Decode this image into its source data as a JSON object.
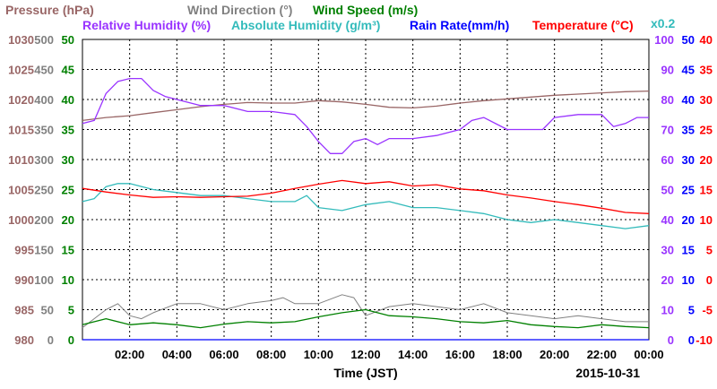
{
  "chart_data": {
    "type": "line",
    "date": "2015-10-31",
    "xlabel": "Time (JST)",
    "x_ticks": [
      "02:00",
      "04:00",
      "06:00",
      "08:00",
      "10:00",
      "12:00",
      "14:00",
      "16:00",
      "18:00",
      "20:00",
      "22:00",
      "00:00"
    ],
    "x_range_hours": [
      0,
      24
    ],
    "grid": true,
    "legend_placement": "top",
    "scale_note": "x0.2",
    "axes": [
      {
        "key": "pressure",
        "label": "Pressure (hPa)",
        "side": "left",
        "color": "#996666",
        "ylim": [
          980,
          1030
        ],
        "ticks": [
          "1030",
          "1025",
          "1020",
          "1015",
          "1010",
          "1005",
          "1000",
          "995",
          "990",
          "985",
          "980"
        ]
      },
      {
        "key": "direction",
        "label": "Wind Direction (°)",
        "side": "left",
        "color": "#808080",
        "ylim": [
          0,
          500
        ],
        "ticks": [
          "500",
          "450",
          "400",
          "350",
          "300",
          "250",
          "200",
          "150",
          "100",
          "50",
          "0"
        ]
      },
      {
        "key": "speed",
        "label": "Wind Speed (m/s)",
        "side": "left",
        "color": "#008000",
        "ylim": [
          0,
          50
        ],
        "ticks": [
          "50",
          "45",
          "40",
          "35",
          "30",
          "25",
          "20",
          "15",
          "10",
          "5",
          "0"
        ]
      },
      {
        "key": "rh",
        "label": "Relative Humidity (%)",
        "side": "right",
        "color": "#9933ff",
        "ylim": [
          0,
          100
        ],
        "ticks": [
          "100",
          "90",
          "80",
          "70",
          "60",
          "50",
          "40",
          "30",
          "20",
          "10",
          "0"
        ]
      },
      {
        "key": "rain",
        "label": "Rain Rate(mm/h)",
        "side": "right",
        "color": "#0000ff",
        "ylim": [
          0,
          50
        ],
        "ticks": [
          "50",
          "45",
          "40",
          "35",
          "30",
          "25",
          "20",
          "15",
          "10",
          "5",
          "0"
        ]
      },
      {
        "key": "temp",
        "label": "Temperature (°C)",
        "side": "right",
        "color": "#ff0000",
        "ylim": [
          -10,
          40
        ],
        "ticks": [
          "40",
          "35",
          "30",
          "25",
          "20",
          "15",
          "10",
          "5",
          "0",
          "-5",
          "-10"
        ]
      }
    ],
    "legend": [
      {
        "key": "pressure",
        "label": "Pressure (hPa)",
        "color": "#996666",
        "row": 1
      },
      {
        "key": "direction",
        "label": "Wind Direction (°)",
        "color": "#808080",
        "row": 1
      },
      {
        "key": "speed",
        "label": "Wind Speed (m/s)",
        "color": "#008000",
        "row": 1
      },
      {
        "key": "rh",
        "label": "Relative Humidity (%)",
        "color": "#9933ff",
        "row": 2
      },
      {
        "key": "abs",
        "label": "Absolute Humidity (g/m³)",
        "color": "#33bbbb",
        "row": 2
      },
      {
        "key": "rain",
        "label": "Rain Rate(mm/h)",
        "color": "#0000ff",
        "row": 2
      },
      {
        "key": "temp",
        "label": "Temperature (°C)",
        "color": "#ff0000",
        "row": 2
      }
    ],
    "series": [
      {
        "name": "Pressure (hPa)",
        "axis": "pressure",
        "color": "#996666",
        "x": [
          0,
          1,
          2,
          3,
          4,
          5,
          6,
          7,
          8,
          9,
          10,
          11,
          12,
          13,
          14,
          15,
          16,
          17,
          18,
          19,
          20,
          21,
          22,
          23,
          24
        ],
        "values": [
          1016.5,
          1017.0,
          1017.3,
          1017.8,
          1018.3,
          1018.8,
          1019.2,
          1019.5,
          1019.4,
          1019.4,
          1019.8,
          1019.6,
          1019.2,
          1018.7,
          1018.6,
          1018.9,
          1019.4,
          1019.8,
          1020.1,
          1020.4,
          1020.7,
          1020.9,
          1021.1,
          1021.3,
          1021.4
        ]
      },
      {
        "name": "Relative Humidity (%)",
        "axis": "rh",
        "color": "#9933ff",
        "x": [
          0,
          0.5,
          1,
          1.5,
          2,
          2.5,
          3,
          3.5,
          4,
          5,
          6,
          7,
          8,
          9,
          9.5,
          10,
          10.5,
          11,
          11.5,
          12,
          12.5,
          13,
          14,
          15,
          16,
          16.5,
          17,
          18,
          19,
          19.5,
          20,
          21,
          22,
          22.5,
          23,
          23.5,
          24
        ],
        "values": [
          72,
          73,
          82,
          86,
          87,
          87,
          83,
          81,
          80,
          78,
          78,
          76,
          76,
          75,
          71,
          66,
          62,
          62,
          66,
          67,
          65,
          67,
          67,
          68,
          70,
          73,
          74,
          70,
          70,
          70,
          74,
          75,
          75,
          71,
          72,
          74,
          74
        ]
      },
      {
        "name": "Absolute Humidity (g/m³)",
        "axis": "abs",
        "color": "#33bbbb",
        "scale": 0.2,
        "x": [
          0,
          0.5,
          1,
          1.5,
          2,
          3,
          4,
          5,
          6,
          7,
          8,
          9,
          9.5,
          10,
          11,
          12,
          13,
          14,
          15,
          16,
          17,
          18,
          19,
          20,
          21,
          22,
          23,
          24
        ],
        "values": [
          46,
          47,
          51,
          52,
          52,
          50,
          49,
          48,
          48,
          47,
          46,
          46,
          48,
          44,
          43,
          45,
          46,
          44,
          44,
          43,
          42,
          40,
          39,
          40,
          39,
          38,
          37,
          38
        ]
      },
      {
        "name": "Temperature (°C)",
        "axis": "temp",
        "color": "#ff0000",
        "x": [
          0,
          1,
          2,
          3,
          4,
          5,
          6,
          7,
          8,
          9,
          10,
          11,
          12,
          13,
          14,
          15,
          16,
          17,
          18,
          19,
          20,
          21,
          22,
          23,
          24
        ],
        "values": [
          15.2,
          14.6,
          14.1,
          13.7,
          13.8,
          13.7,
          13.8,
          13.9,
          14.4,
          15.2,
          15.9,
          16.5,
          16.0,
          16.3,
          15.6,
          15.8,
          15.1,
          14.8,
          14.1,
          13.6,
          13.0,
          12.5,
          11.9,
          11.2,
          11.0
        ]
      },
      {
        "name": "Wind Direction (°)",
        "axis": "direction",
        "color": "#808080",
        "x": [
          0,
          1,
          1.5,
          2,
          2.5,
          3,
          4,
          5,
          6,
          7,
          8,
          8.5,
          9,
          10,
          11,
          11.5,
          12,
          13,
          14,
          15,
          16,
          17,
          18,
          19,
          20,
          21,
          22,
          23,
          24
        ],
        "values": [
          20,
          50,
          60,
          40,
          35,
          45,
          60,
          60,
          50,
          60,
          65,
          70,
          60,
          60,
          75,
          70,
          40,
          55,
          60,
          55,
          50,
          60,
          45,
          40,
          35,
          40,
          35,
          30,
          30
        ]
      },
      {
        "name": "Wind Speed (m/s)",
        "axis": "speed",
        "color": "#008000",
        "x": [
          0,
          1,
          2,
          3,
          4,
          5,
          6,
          7,
          8,
          9,
          10,
          11,
          12,
          13,
          14,
          15,
          16,
          17,
          18,
          19,
          20,
          21,
          22,
          23,
          24
        ],
        "values": [
          2.5,
          3.5,
          2.5,
          2.8,
          2.5,
          2.0,
          2.6,
          3.0,
          2.8,
          3.0,
          3.8,
          4.5,
          5.0,
          4.0,
          3.8,
          3.5,
          3.0,
          2.8,
          3.2,
          2.5,
          2.2,
          2.0,
          2.5,
          2.2,
          2.0
        ]
      },
      {
        "name": "Rain Rate(mm/h)",
        "axis": "rain",
        "color": "#0000ff",
        "x": [
          0,
          24
        ],
        "values": [
          0,
          0
        ]
      }
    ]
  }
}
